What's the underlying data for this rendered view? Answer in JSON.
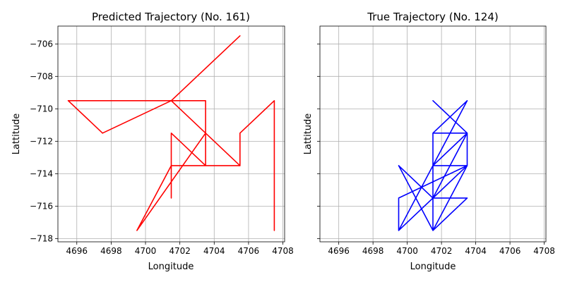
{
  "chart_data": [
    {
      "type": "line",
      "title": "Predicted Trajectory (No. 161)",
      "xlabel": "Longitude",
      "ylabel": "Lattitude",
      "xlim": [
        4694.9,
        4708.1
      ],
      "ylim": [
        -718.2,
        -704.9
      ],
      "xticks": [
        4696,
        4698,
        4700,
        4702,
        4704,
        4706,
        4708
      ],
      "yticks": [
        -706,
        -708,
        -710,
        -712,
        -714,
        -716,
        -718
      ],
      "grid": true,
      "color": "#ff0000",
      "series": [
        {
          "x": [
            4701.5,
            4701.5,
            4699.5,
            4703.5,
            4703.5,
            4701.5,
            4705.5,
            4701.5,
            4695.5,
            4701.5,
            4703.5,
            4703.5,
            4701.5,
            4701.5,
            4703.5,
            4705.5,
            4705.5,
            4707.5,
            4707.5
          ],
          "y": [
            -715.5,
            -713.5,
            -717.5,
            -711.5,
            -709.5,
            -709.5,
            -705.5,
            -709.5,
            -709.5,
            -709.5,
            -709.5,
            -713.5,
            -713.5,
            -711.5,
            -713.5,
            -713.5,
            -711.5,
            -709.5,
            -717.5
          ]
        },
        {
          "x": [
            4697.5,
            4701.5,
            4705.5
          ],
          "y": [
            -711.5,
            -709.5,
            -713.5
          ]
        },
        {
          "x": [
            4695.5,
            4697.5
          ],
          "y": [
            -709.5,
            -711.5
          ]
        }
      ]
    },
    {
      "type": "line",
      "title": "True Trajectory (No. 124)",
      "xlabel": "Longitude",
      "ylabel": "Lattitude",
      "xlim": [
        4694.9,
        4708.1
      ],
      "ylim": [
        -718.2,
        -704.9
      ],
      "xticks": [
        4696,
        4698,
        4700,
        4702,
        4704,
        4706,
        4708
      ],
      "yticks": [
        -706,
        -708,
        -710,
        -712,
        -714,
        -716,
        -718
      ],
      "grid": true,
      "color": "#0000ff",
      "series": [
        {
          "x": [
            4701.5,
            4703.5,
            4701.5,
            4703.5,
            4701.5,
            4703.5,
            4701.5,
            4701.5,
            4703.5,
            4701.5,
            4699.5,
            4703.5,
            4701.5,
            4699.5,
            4699.5,
            4703.5,
            4701.5,
            4703.5,
            4703.5,
            4701.5,
            4701.5,
            4703.5,
            4701.5,
            4699.5,
            4701.5,
            4701.5,
            4703.5
          ],
          "y": [
            -709.5,
            -711.5,
            -711.5,
            -709.5,
            -713.5,
            -711.5,
            -711.5,
            -717.5,
            -715.5,
            -715.5,
            -717.5,
            -713.5,
            -713.5,
            -717.5,
            -715.5,
            -713.5,
            -717.5,
            -713.5,
            -711.5,
            -711.5,
            -713.5,
            -713.5,
            -715.5,
            -713.5,
            -717.5,
            -715.5,
            -711.5
          ]
        }
      ]
    }
  ]
}
